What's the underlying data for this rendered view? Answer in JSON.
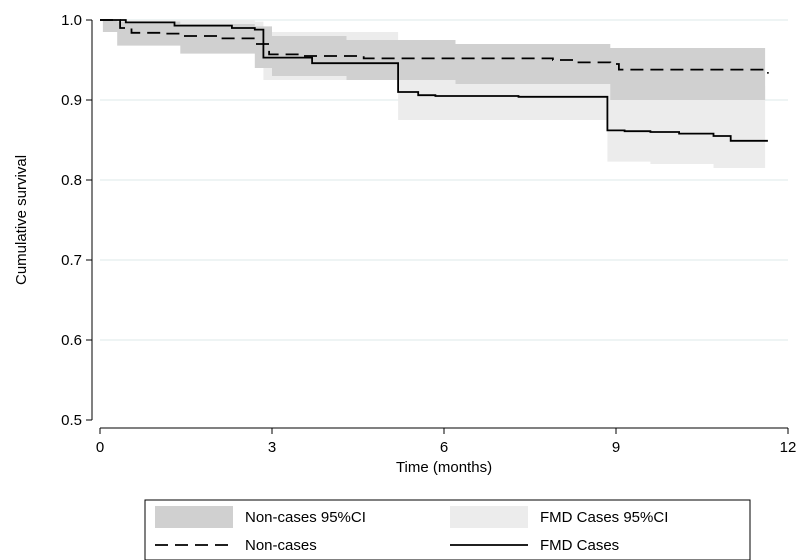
{
  "chart_data": {
    "type": "line",
    "title": "",
    "xlabel": "Time (months)",
    "ylabel": "Cumulative survival",
    "xlim": [
      0,
      12
    ],
    "ylim": [
      0.5,
      1.0
    ],
    "xticks": [
      0,
      3,
      6,
      9,
      12
    ],
    "xtick_labels": [
      "0",
      "3",
      "6",
      "9",
      "12"
    ],
    "yticks": [
      0.5,
      0.6,
      0.7,
      0.8,
      0.9,
      1.0
    ],
    "ytick_labels": [
      "0.5",
      "0.6",
      "0.7",
      "0.8",
      "0.9",
      "1.0"
    ],
    "grid": "horizontal",
    "legend_position": "bottom",
    "colors": {
      "noncases_ci": "#d0d0d0",
      "fmd_ci": "#ececec",
      "line": "#000000",
      "grid": "#dde8e8"
    },
    "legend": [
      {
        "label": "Non-cases 95%CI",
        "style": "band-dark"
      },
      {
        "label": "FMD Cases 95%CI",
        "style": "band-light"
      },
      {
        "label": "Non-cases",
        "style": "dashed"
      },
      {
        "label": "FMD Cases",
        "style": "solid"
      }
    ],
    "series": [
      {
        "name": "Non-cases",
        "line_style": "dashed",
        "step_x": [
          0,
          0.35,
          0.55,
          1.05,
          1.4,
          2.05,
          2.7,
          2.95,
          3.5,
          4.6,
          7.9,
          8.3,
          8.9,
          9.05,
          11.65
        ],
        "step_y": [
          1.0,
          0.99,
          0.984,
          0.983,
          0.98,
          0.977,
          0.97,
          0.957,
          0.955,
          0.952,
          0.95,
          0.947,
          0.945,
          0.938,
          0.933
        ],
        "ci_x": [
          0.05,
          0.3,
          1.4,
          2.7,
          3.0,
          4.3,
          6.2,
          8.9,
          11.6
        ],
        "ci_upper": [
          1.0,
          0.998,
          0.995,
          0.992,
          0.98,
          0.975,
          0.97,
          0.965,
          0.962
        ],
        "ci_lower": [
          0.985,
          0.968,
          0.958,
          0.94,
          0.93,
          0.925,
          0.92,
          0.9,
          0.89
        ]
      },
      {
        "name": "FMD Cases",
        "line_style": "solid",
        "step_x": [
          0,
          0.45,
          1.3,
          2.3,
          2.7,
          2.85,
          3.7,
          5.2,
          5.55,
          5.85,
          7.3,
          8.85,
          9.15,
          9.6,
          10.1,
          10.7,
          11.0,
          11.65
        ],
        "step_y": [
          1.0,
          0.997,
          0.993,
          0.99,
          0.988,
          0.953,
          0.946,
          0.91,
          0.906,
          0.905,
          0.904,
          0.862,
          0.861,
          0.86,
          0.858,
          0.855,
          0.849,
          0.849
        ],
        "ci_x": [
          0.05,
          1.3,
          2.7,
          2.85,
          5.2,
          8.85,
          9.6,
          10.7,
          11.6
        ],
        "ci_upper": [
          1.0,
          1.0,
          0.998,
          0.985,
          0.955,
          0.93,
          0.925,
          0.918,
          0.88
        ],
        "ci_lower": [
          0.99,
          0.975,
          0.965,
          0.925,
          0.875,
          0.823,
          0.82,
          0.815,
          0.805
        ]
      }
    ]
  }
}
